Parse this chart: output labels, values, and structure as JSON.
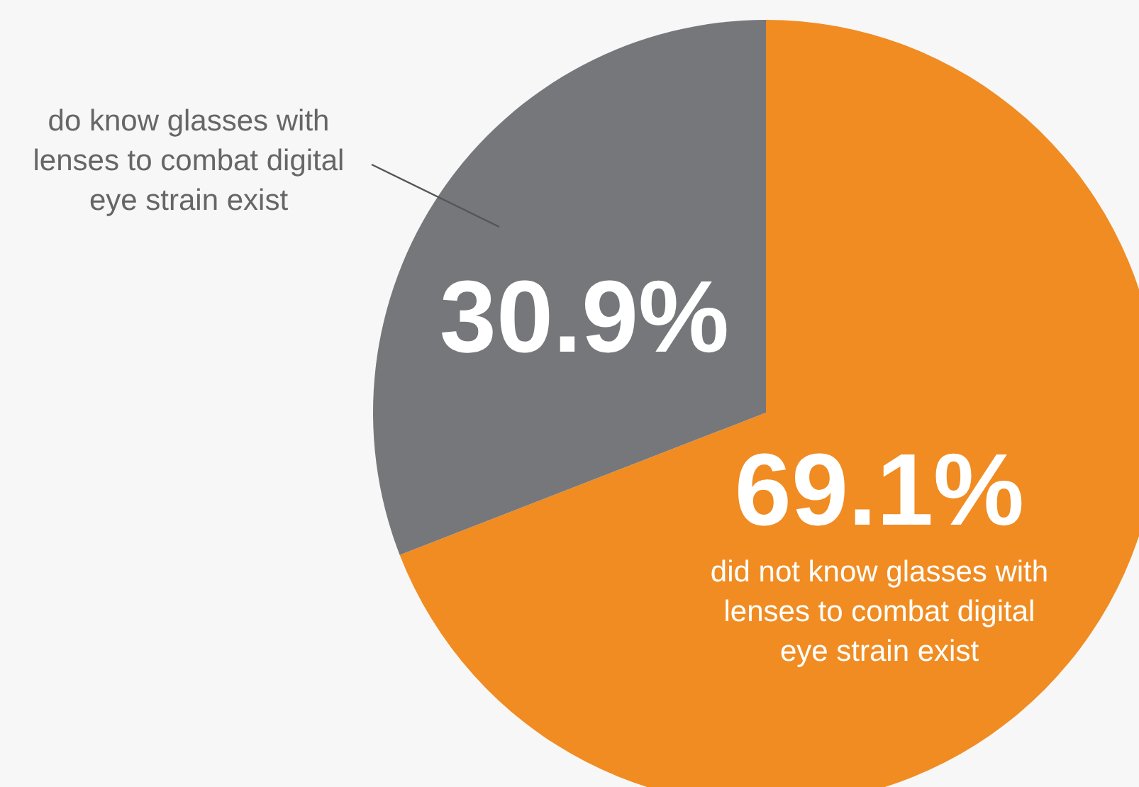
{
  "chart_data": {
    "type": "pie",
    "categories": [
      "did not know glasses with lenses to combat digital eye strain exist",
      "do know glasses with lenses to combat digital eye strain exist"
    ],
    "values": [
      69.1,
      30.9
    ],
    "colors": [
      "#f08c22",
      "#76777b"
    ],
    "value_labels": [
      "69.1%",
      "30.9%"
    ]
  }
}
